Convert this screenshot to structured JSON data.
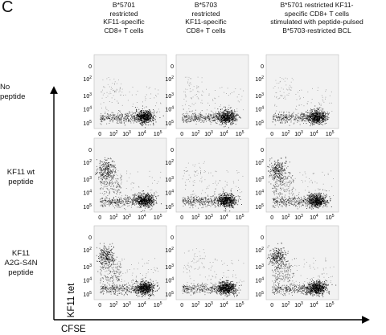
{
  "panel_letter": "C",
  "column_headers": [
    "B*5701\nrestricted\nKF11-specific\nCD8+ T cells",
    "B*5703\nrestricted\nKF11-specific\nCD8+ T cells",
    "B*5701 restricted KF11-\nspecific CD8+ T cells\nstimulated with peptide-pulsed\nB*5703-restricted BCL"
  ],
  "row_labels": [
    "No peptide",
    "KF11 wt\npeptide",
    "KF11\nA2G-S4N\npeptide"
  ],
  "y_axis_title": "KF11 tet",
  "x_axis_title": "CFSE",
  "y_ticks": [
    {
      "base": "10",
      "exp": "5"
    },
    {
      "base": "10",
      "exp": "4"
    },
    {
      "base": "10",
      "exp": "3"
    },
    {
      "base": "10",
      "exp": "2"
    },
    {
      "base": "0",
      "exp": ""
    }
  ],
  "x_ticks": [
    {
      "base": "0",
      "exp": ""
    },
    {
      "base": "10",
      "exp": "2"
    },
    {
      "base": "10",
      "exp": "3"
    },
    {
      "base": "10",
      "exp": "4"
    },
    {
      "base": "10",
      "exp": "5"
    }
  ],
  "chart_data": {
    "type": "scatter",
    "title": "",
    "xlabel": "CFSE",
    "ylabel": "KF11 tet",
    "scale": "log",
    "xlim": [
      "0",
      "10^5"
    ],
    "ylim": [
      "0",
      "10^5"
    ],
    "grid": false,
    "plots": [
      {
        "row": "No peptide",
        "column": 1,
        "tetramer_positive_divided_cluster": false
      },
      {
        "row": "No peptide",
        "column": 2,
        "tetramer_positive_divided_cluster": false
      },
      {
        "row": "No peptide",
        "column": 3,
        "tetramer_positive_divided_cluster": false
      },
      {
        "row": "KF11 wt peptide",
        "column": 1,
        "tetramer_positive_divided_cluster": true
      },
      {
        "row": "KF11 wt peptide",
        "column": 2,
        "tetramer_positive_divided_cluster": false
      },
      {
        "row": "KF11 wt peptide",
        "column": 3,
        "tetramer_positive_divided_cluster": true
      },
      {
        "row": "KF11 A2G-S4N peptide",
        "column": 1,
        "tetramer_positive_divided_cluster": true
      },
      {
        "row": "KF11 A2G-S4N peptide",
        "column": 2,
        "tetramer_positive_divided_cluster": false
      },
      {
        "row": "KF11 A2G-S4N peptide",
        "column": 3,
        "tetramer_positive_divided_cluster": true
      }
    ]
  }
}
